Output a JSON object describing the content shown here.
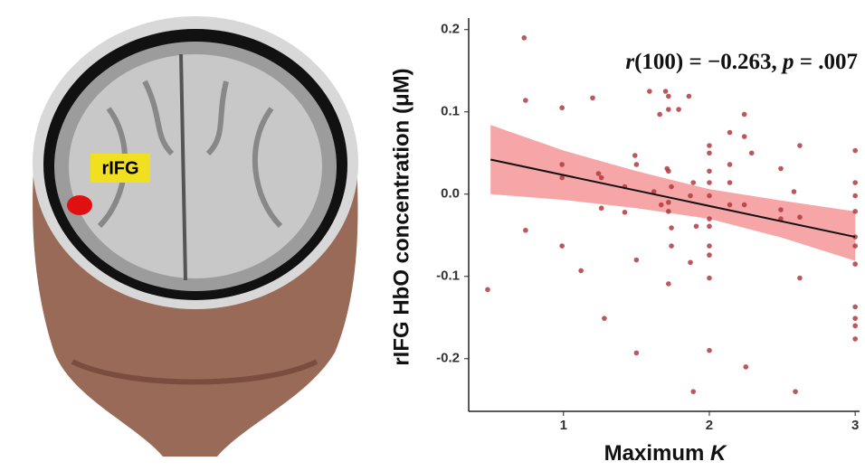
{
  "brain_label": "rIFG",
  "chart_data": {
    "type": "scatter",
    "annotation": [
      "r",
      "(100) = −0.263, ",
      "p",
      " = .007"
    ],
    "xlabel": [
      "Maximum ",
      "K"
    ],
    "ylabel": "rIFG HbO concentration (μM)",
    "xlim": [
      0.35,
      3.03
    ],
    "ylim": [
      -0.264,
      0.214
    ],
    "xticks": [
      1,
      2,
      3
    ],
    "yticks": [
      0.2,
      0.1,
      {
        "value": 0,
        "label": "0.0"
      },
      -0.1,
      -0.2
    ],
    "points": {
      "color": "#b03a40",
      "x": [
        0.48,
        0.73,
        0.74,
        0.74,
        0.99,
        0.99,
        0.99,
        0.99,
        1.2,
        1.12,
        1.24,
        1.26,
        1.26,
        1.28,
        1.42,
        1.42,
        1.49,
        1.5,
        1.5,
        1.5,
        1.59,
        1.62,
        1.66,
        1.67,
        1.7,
        1.71,
        1.72,
        1.72,
        1.72,
        1.72,
        1.72,
        1.72,
        1.74,
        1.74,
        1.74,
        1.79,
        1.86,
        1.87,
        1.87,
        1.89,
        1.89,
        1.91,
        2.0,
        2.0,
        2.0,
        2.0,
        2.0,
        2.0,
        2.0,
        2.0,
        2.0,
        2.0,
        2.0,
        2.14,
        2.14,
        2.14,
        2.14,
        2.24,
        2.24,
        2.24,
        2.25,
        2.29,
        2.49,
        2.49,
        2.49,
        2.58,
        2.59,
        2.62,
        2.62,
        2.62,
        3.0,
        3.0,
        3.0,
        3.0,
        3.0,
        3.0,
        3.0,
        3.0,
        3.0,
        3.0,
        3.0
      ],
      "y": [
        -0.116,
        0.19,
        0.114,
        -0.044,
        0.105,
        0.036,
        0.02,
        -0.063,
        0.117,
        -0.093,
        0.025,
        0.02,
        -0.017,
        -0.151,
        0.009,
        -0.022,
        0.047,
        0.036,
        -0.08,
        -0.193,
        0.125,
        0.003,
        0.097,
        -0.013,
        0.125,
        0.031,
        0.028,
        0.119,
        0.103,
        -0.01,
        -0.021,
        -0.109,
        0.009,
        -0.063,
        -0.041,
        0.103,
        0.119,
        -0.002,
        -0.083,
        -0.24,
        0.014,
        -0.039,
        0.059,
        0.05,
        0.028,
        0.014,
        -0.002,
        -0.03,
        -0.039,
        -0.063,
        -0.074,
        -0.102,
        -0.19,
        0.075,
        0.036,
        0.014,
        -0.013,
        0.097,
        0.07,
        -0.013,
        -0.21,
        0.05,
        0.031,
        -0.019,
        -0.03,
        0.003,
        -0.24,
        0.059,
        -0.102,
        -0.028,
        0.053,
        0.014,
        -0.002,
        -0.021,
        -0.052,
        -0.063,
        -0.085,
        -0.137,
        -0.151,
        -0.16,
        -0.176
      ]
    },
    "band": {
      "color": "#f28080",
      "x": [
        0.5,
        1,
        1.5,
        2,
        2.5,
        3
      ],
      "upper": [
        0.084,
        0.053,
        0.028,
        0.006,
        -0.008,
        -0.021
      ],
      "lower": [
        0.0,
        -0.007,
        -0.017,
        -0.03,
        -0.053,
        -0.081
      ]
    },
    "fit": {
      "color": "#111111",
      "x": [
        0.5,
        3
      ],
      "y": [
        0.042,
        -0.052
      ]
    }
  }
}
